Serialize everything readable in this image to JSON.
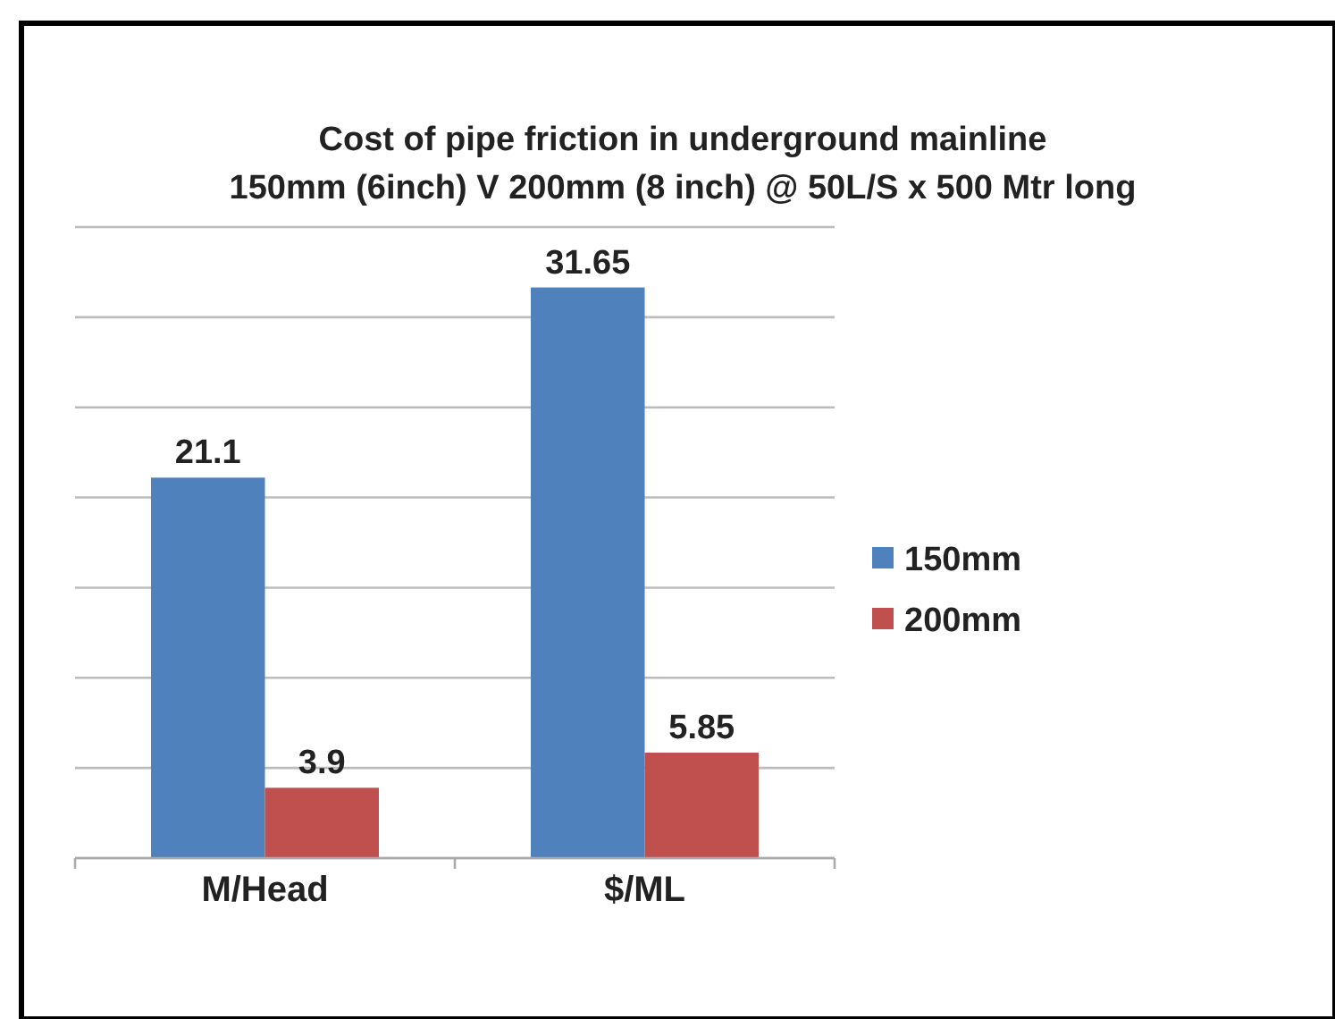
{
  "chart_data": {
    "type": "bar",
    "title": "Cost of pipe friction in underground mainline",
    "subtitle": "150mm (6inch) V 200mm (8 inch) @ 50L/S x 500 Mtr long",
    "categories": [
      "M/Head",
      "$/ML"
    ],
    "series": [
      {
        "name": "150mm",
        "color": "#4f81bd",
        "values": [
          21.1,
          31.65
        ]
      },
      {
        "name": "200mm",
        "color": "#c0504d",
        "values": [
          3.9,
          5.85
        ]
      }
    ],
    "ylim": [
      0,
      35
    ],
    "yticks": [
      {
        "value": 0,
        "label": null
      },
      {
        "value": 5,
        "label": null
      },
      {
        "value": 10,
        "label": null
      },
      {
        "value": 15,
        "label": null
      },
      {
        "value": 20,
        "label": null
      },
      {
        "value": 25,
        "label": null
      },
      {
        "value": 30,
        "label": null
      },
      {
        "value": 35,
        "label": null
      }
    ],
    "grid": true,
    "tick_labels": "x",
    "data_labels": true,
    "legend": "right"
  }
}
